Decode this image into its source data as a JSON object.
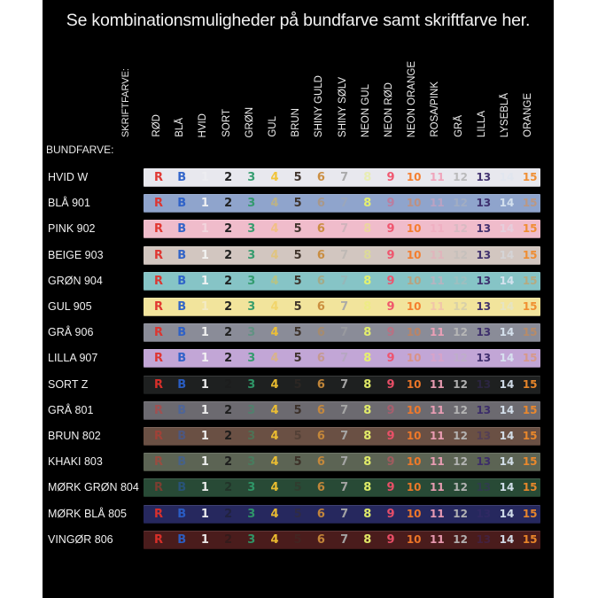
{
  "title": "Se kombinationsmuligheder på bundfarve samt skriftfarve her.",
  "skriftfarve_label": "SKRIFTFARVE:",
  "bundfarve_label": "BUNDFARVE:",
  "columns": [
    {
      "name": "RØD",
      "code": "R",
      "color": "#e0302a"
    },
    {
      "name": "BLÅ",
      "code": "B",
      "color": "#2a5fc8"
    },
    {
      "name": "HVID",
      "code": "1",
      "color": "#f4f4f4"
    },
    {
      "name": "SORT",
      "code": "2",
      "color": "#1a1a1a"
    },
    {
      "name": "GRØN",
      "code": "3",
      "color": "#2f9a6a"
    },
    {
      "name": "GUL",
      "code": "4",
      "color": "#f2c230"
    },
    {
      "name": "BRUN",
      "code": "5",
      "color": "#3a2e26"
    },
    {
      "name": "SHINY GULD",
      "code": "6",
      "color": "#c98a3a"
    },
    {
      "name": "SHINY SØLV",
      "code": "7",
      "color": "#a8a8a8"
    },
    {
      "name": "NEON GUL",
      "code": "8",
      "color": "#e8f36a"
    },
    {
      "name": "NEON RØD",
      "code": "9",
      "color": "#f0506a"
    },
    {
      "name": "NEON ORANGE",
      "code": "10",
      "color": "#f57a28"
    },
    {
      "name": "ROSA/PINK",
      "code": "11",
      "color": "#f0a0b8"
    },
    {
      "name": "GRÅ",
      "code": "12",
      "color": "#b8b8b8"
    },
    {
      "name": "LILLA",
      "code": "13",
      "color": "#3a2a6a"
    },
    {
      "name": "LYSEBLÅ",
      "code": "14",
      "color": "#d8e4f0"
    },
    {
      "name": "ORANGE",
      "code": "15",
      "color": "#f08a2a"
    }
  ],
  "rows": [
    {
      "name": "HVID W",
      "bg": "#e8e8ee"
    },
    {
      "name": "BLÅ 901",
      "bg": "#8fa4cc"
    },
    {
      "name": "PINK 902",
      "bg": "#f0bccb"
    },
    {
      "name": "BEIGE 903",
      "bg": "#d2c6c0"
    },
    {
      "name": "GRØN 904",
      "bg": "#86c4c6"
    },
    {
      "name": "GUL 905",
      "bg": "#f2e49c"
    },
    {
      "name": "GRÅ 906",
      "bg": "#8a8c98"
    },
    {
      "name": "LILLA 907",
      "bg": "#c2a6d6"
    },
    {
      "name": "SORT Z",
      "bg": "#1e2020"
    },
    {
      "name": "GRÅ 801",
      "bg": "#6c6a70"
    },
    {
      "name": "BRUN 802",
      "bg": "#6a5044"
    },
    {
      "name": "KHAKI 803",
      "bg": "#5c6454"
    },
    {
      "name": "MØRK GRØN 804",
      "bg": "#284a36"
    },
    {
      "name": "MØRK BLÅ 805",
      "bg": "#26285e"
    },
    {
      "name": "VINGØR 806",
      "bg": "#4a1c1c"
    }
  ]
}
